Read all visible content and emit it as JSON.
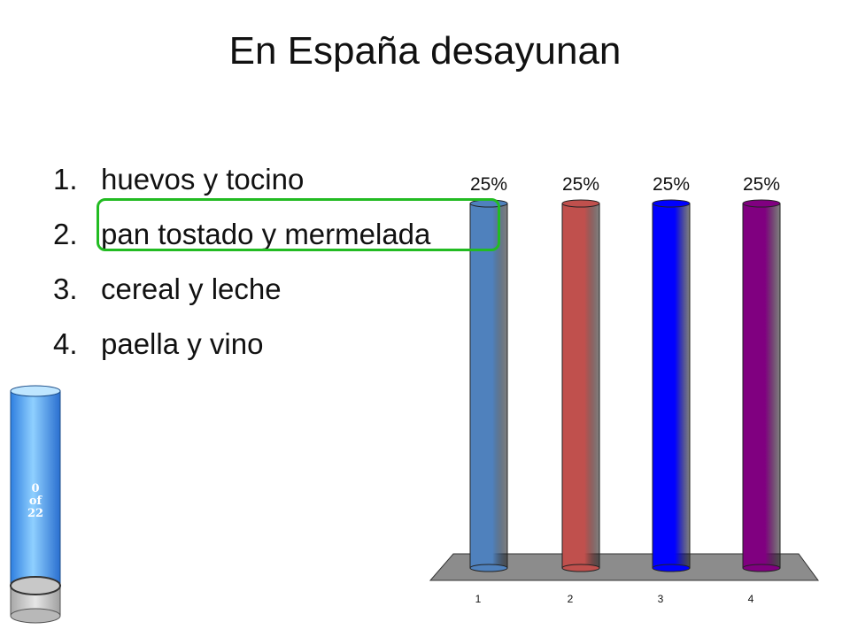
{
  "title": "En España desayunan",
  "answers": [
    {
      "number": "1.",
      "text": "huevos y tocino"
    },
    {
      "number": "2.",
      "text": "pan tostado y mermelada"
    },
    {
      "number": "3.",
      "text": "cereal y leche"
    },
    {
      "number": "4.",
      "text": "paella y vino"
    }
  ],
  "correct_answer": 2,
  "response_counter": {
    "line1": "0",
    "line2": "of",
    "line3": "22"
  },
  "colors": {
    "correct_highlight": "#22bb22",
    "bar_1": "#4f81bd",
    "bar_2": "#c0504d",
    "bar_3": "#0000ff",
    "bar_4": "#800080",
    "floor": "#8c8c8c",
    "counter": "#4da6ff"
  },
  "chart_data": {
    "type": "bar",
    "categories": [
      "1",
      "2",
      "3",
      "4"
    ],
    "values": [
      25,
      25,
      25,
      25
    ],
    "data_labels": [
      "25%",
      "25%",
      "25%",
      "25%"
    ],
    "ylim": [
      0,
      25
    ],
    "title": "",
    "xlabel": "",
    "ylabel": ""
  }
}
